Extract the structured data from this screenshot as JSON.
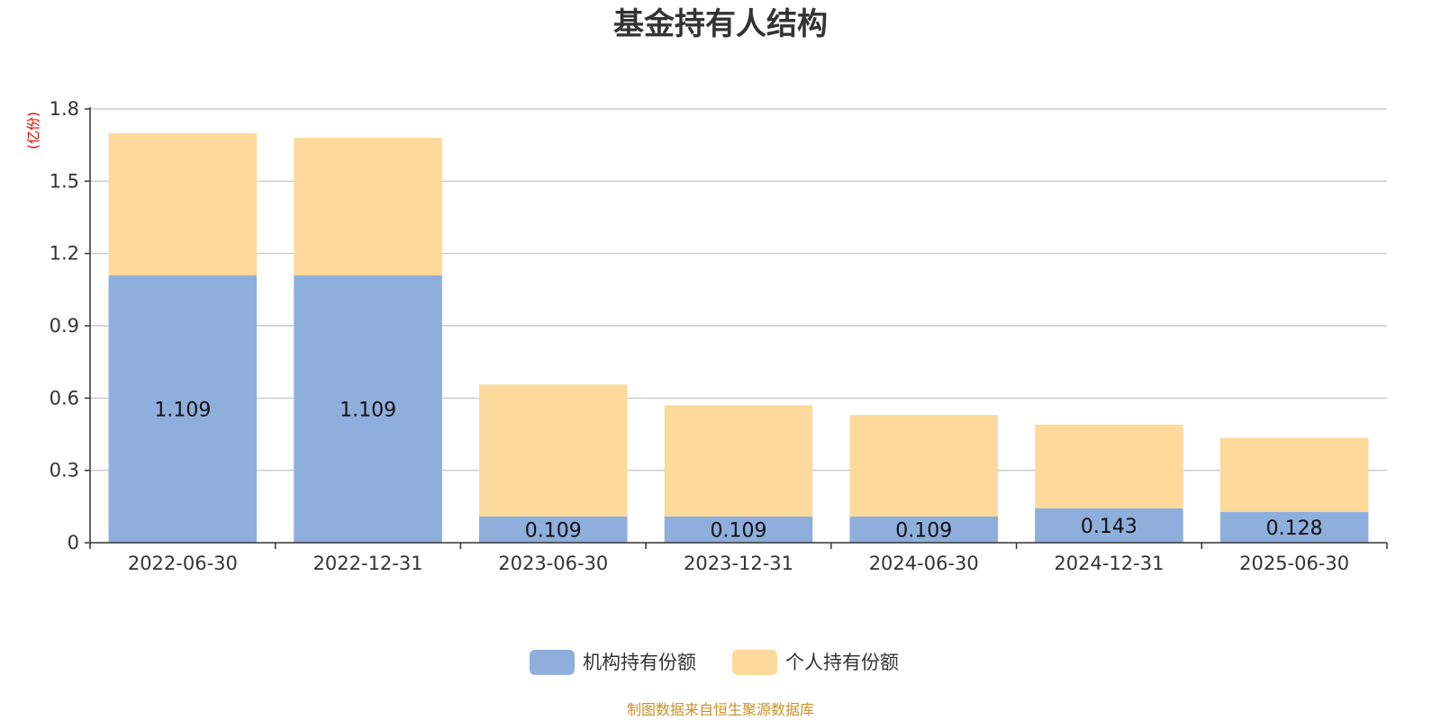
{
  "chart_data": {
    "type": "bar",
    "stacked": true,
    "title": "基金持有人结构",
    "ylabel": "(亿份)",
    "ylim": [
      0,
      1.8
    ],
    "yticks": [
      "0",
      "0.3",
      "0.6",
      "0.9",
      "1.2",
      "1.5",
      "1.8"
    ],
    "grid": true,
    "legend_position": "bottom",
    "categories": [
      "2022-06-30",
      "2022-12-31",
      "2023-06-30",
      "2023-12-31",
      "2024-06-30",
      "2024-12-31",
      "2025-06-30"
    ],
    "series": [
      {
        "name": "机构持有份额",
        "color": "#8eaedc",
        "values": [
          1.109,
          1.109,
          0.109,
          0.109,
          0.109,
          0.143,
          0.128
        ],
        "labels": [
          "1.109",
          "1.109",
          "0.109",
          "0.109",
          "0.109",
          "0.143",
          "0.128"
        ]
      },
      {
        "name": "个人持有份额",
        "color": "#fdd99b",
        "values": [
          0.591,
          0.571,
          0.547,
          0.461,
          0.421,
          0.347,
          0.307
        ]
      }
    ],
    "source": "制图数据来自恒生聚源数据库"
  }
}
